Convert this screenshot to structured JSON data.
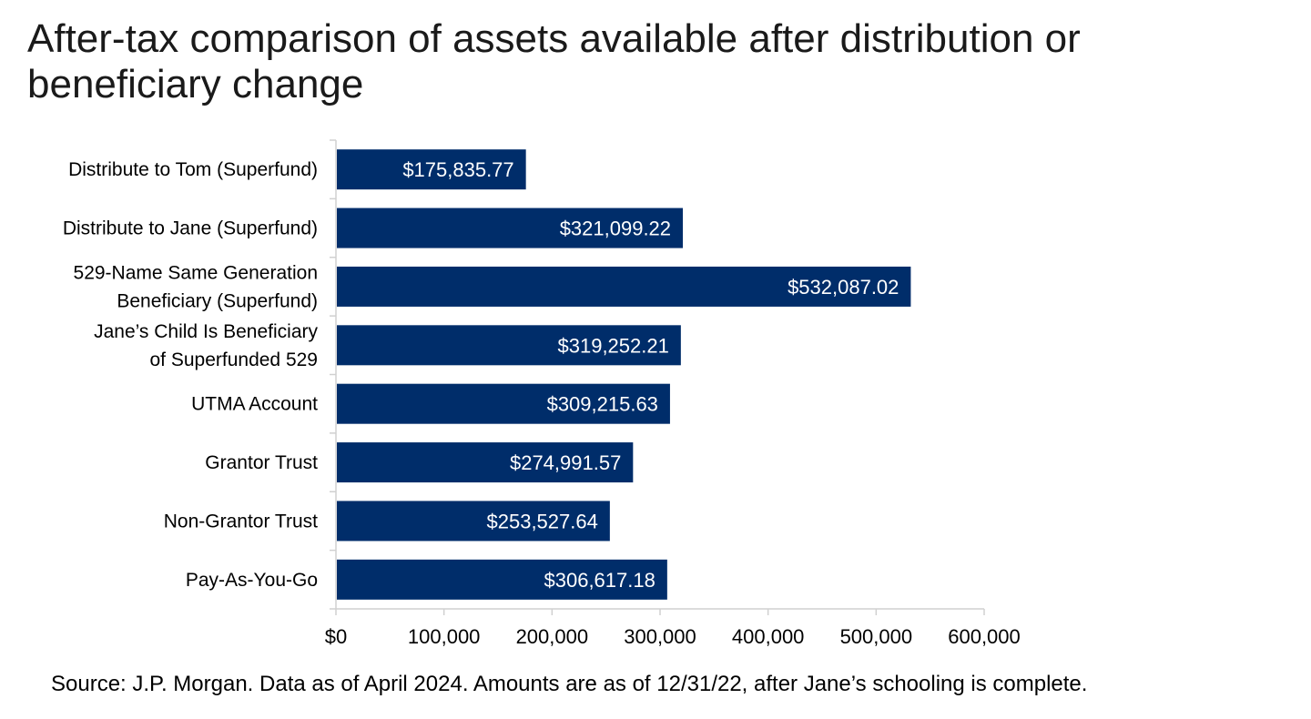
{
  "title": "After-tax comparison of assets available after distribution or beneficiary change",
  "source": "Source: J.P. Morgan. Data as of April 2024. Amounts are as of 12/31/22, after Jane’s schooling is complete.",
  "chart_data": {
    "type": "bar",
    "orientation": "horizontal",
    "title": "After-tax comparison of assets available after distribution or beneficiary change",
    "xlabel": "",
    "ylabel": "",
    "categories": [
      [
        "Distribute to Tom (Superfund)"
      ],
      [
        "Distribute to Jane (Superfund)"
      ],
      [
        "529-Name Same Generation",
        "Beneficiary (Superfund)"
      ],
      [
        "Jane’s Child Is Beneficiary",
        "of Superfunded 529"
      ],
      [
        "UTMA Account"
      ],
      [
        "Grantor Trust"
      ],
      [
        "Non-Grantor Trust"
      ],
      [
        "Pay-As-You-Go"
      ]
    ],
    "values": [
      175835.77,
      321099.22,
      532087.02,
      319252.21,
      309215.63,
      274991.57,
      253527.64,
      306617.18
    ],
    "value_labels": [
      "$175,835.77",
      "$321,099.22",
      "$532,087.02",
      "$319,252.21",
      "$309,215.63",
      "$274,991.57",
      "$253,527.64",
      "$306,617.18"
    ],
    "xlim": [
      0,
      600000
    ],
    "xticks": [
      0,
      100000,
      200000,
      300000,
      400000,
      500000,
      600000
    ],
    "xtick_labels": [
      "$0",
      "100,000",
      "200,000",
      "300,000",
      "400,000",
      "500,000",
      "600,000"
    ],
    "grid": false,
    "legend": "none",
    "bar_color": "#002d6a",
    "axis_color": "#d0d0d0"
  }
}
